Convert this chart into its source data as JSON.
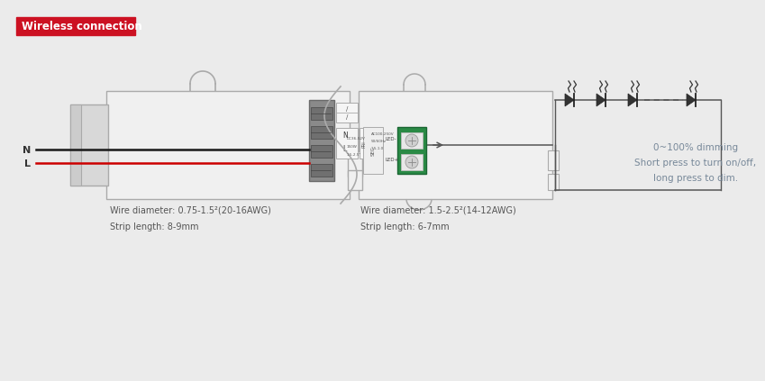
{
  "bg_color": "#ebebeb",
  "title_text": "Wireless connection",
  "title_bg": "#cc1122",
  "title_color": "#ffffff",
  "title_fontsize": 8.5,
  "wire_color_N": "#1a1a1a",
  "wire_color_L": "#cc0000",
  "label_N": "N",
  "label_L": "L",
  "label_color": "#333333",
  "body_light": "#f0f0f0",
  "body_mid": "#d8d8d8",
  "body_edge": "#aaaaaa",
  "terminal_gray": "#8a8a8a",
  "terminal_dark": "#6a6a6a",
  "green_block": "#2a8a45",
  "green_edge": "#1a6633",
  "line_color": "#555555",
  "dim_text": "0~100% dimming\nShort press to turn on/off,\nlong press to dim.",
  "wire_spec_left": "Wire diameter: 0.75-1.5²(20-16AWG)\nStrip length: 8-9mm",
  "wire_spec_right": "Wire diameter: 1.5-2.5²(14-12AWG)\nStrip length: 6-7mm",
  "spec_color": "#555555",
  "spec_fontsize": 7.0,
  "dim_fontsize": 7.5,
  "dim_color": "#778899"
}
